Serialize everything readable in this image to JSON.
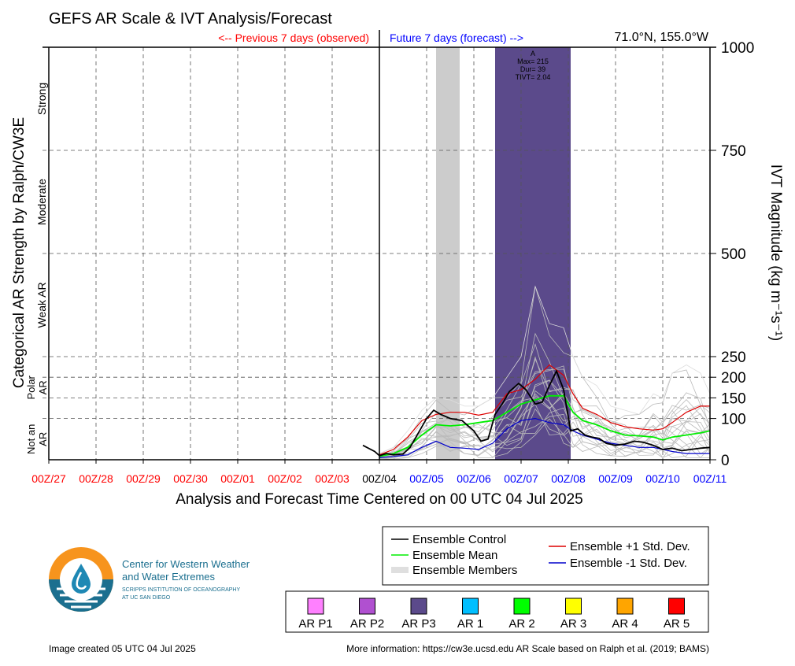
{
  "title": "GEFS AR Scale & IVT Analysis/Forecast",
  "location": "71.0°N, 155.0°W",
  "previous_label": "<-- Previous 7 days (observed)",
  "future_label": "Future 7 days (forecast) -->",
  "xlabel": "Analysis and Forecast Time Centered on 00 UTC 04 Jul 2025",
  "left_ylabel": "Categorical AR Strength by Ralph/CW3E",
  "right_ylabel": "IVT Magnitude (kg m⁻¹s⁻¹)",
  "categories": [
    {
      "label": "Strong",
      "y": 875
    },
    {
      "label": "Moderate",
      "y": 625
    },
    {
      "label": "Weak AR",
      "y": 375
    },
    {
      "label": "Polar AR",
      "y": 175
    },
    {
      "label": "Not an AR",
      "y": 50
    }
  ],
  "logo": {
    "line1": "Center for Western Weather",
    "line2": "and Water Extremes",
    "line3": "SCRIPPS INSTITUTION OF OCEANOGRAPHY",
    "line4": "AT UC SAN DIEGO"
  },
  "footer_left": "Image created 05 UTC 04 Jul 2025",
  "footer_right": "More information: https://cw3e.ucsd.edu AR Scale based on Ralph et al. (2019; BAMS)",
  "legend": [
    {
      "label": "Ensemble Control",
      "color": "#000000"
    },
    {
      "label": "Ensemble Mean",
      "color": "#00ee00"
    },
    {
      "label": "Ensemble Members",
      "color": "#aaaaaa"
    },
    {
      "label": "Ensemble +1 Std. Dev.",
      "color": "#dd0000"
    },
    {
      "label": "Ensemble -1 Std. Dev.",
      "color": "#0000cc"
    }
  ],
  "ar_scale_legend": [
    {
      "label": "AR P1",
      "color": "#ff80ff"
    },
    {
      "label": "AR P2",
      "color": "#b050d0"
    },
    {
      "label": "AR P3",
      "color": "#5b4a8b"
    },
    {
      "label": "AR 1",
      "color": "#00bfff"
    },
    {
      "label": "AR 2",
      "color": "#00ff00"
    },
    {
      "label": "AR 3",
      "color": "#ffff00"
    },
    {
      "label": "AR 4",
      "color": "#ffa500"
    },
    {
      "label": "AR 5",
      "color": "#ff0000"
    }
  ],
  "chart_data": {
    "type": "line",
    "x_ticks": [
      {
        "label": "00Z/27",
        "day": 0,
        "color": "#ff0000"
      },
      {
        "label": "00Z/28",
        "day": 1,
        "color": "#ff0000"
      },
      {
        "label": "00Z/29",
        "day": 2,
        "color": "#ff0000"
      },
      {
        "label": "00Z/30",
        "day": 3,
        "color": "#ff0000"
      },
      {
        "label": "00Z/01",
        "day": 4,
        "color": "#ff0000"
      },
      {
        "label": "00Z/02",
        "day": 5,
        "color": "#ff0000"
      },
      {
        "label": "00Z/03",
        "day": 6,
        "color": "#ff0000"
      },
      {
        "label": "00Z/04",
        "day": 7,
        "color": "#000000"
      },
      {
        "label": "00Z/05",
        "day": 8,
        "color": "#0000ff"
      },
      {
        "label": "00Z/06",
        "day": 9,
        "color": "#0000ff"
      },
      {
        "label": "00Z/07",
        "day": 10,
        "color": "#0000ff"
      },
      {
        "label": "00Z/08",
        "day": 11,
        "color": "#0000ff"
      },
      {
        "label": "00Z/09",
        "day": 12,
        "color": "#0000ff"
      },
      {
        "label": "00Z/10",
        "day": 13,
        "color": "#0000ff"
      },
      {
        "label": "00Z/11",
        "day": 14,
        "color": "#0000ff"
      }
    ],
    "xlim": [
      0,
      14
    ],
    "ylim": [
      0,
      1000
    ],
    "y_ticks": [
      0,
      100,
      150,
      200,
      250,
      500,
      750,
      1000
    ],
    "category_boundaries": [
      100,
      150,
      200,
      250,
      500,
      750
    ],
    "now_day": 7,
    "gray_band": {
      "from": 8.2,
      "to": 8.7
    },
    "ar_event": {
      "from": 9.45,
      "to": 11.05,
      "level": "AR P3",
      "color": "#5b4a8b",
      "annotation": [
        "A",
        "Max= 215",
        "Dur= 39",
        "TIVT= 2.04"
      ]
    },
    "series": [
      {
        "name": "Ensemble Control",
        "color": "#000000",
        "x": [
          6.65,
          6.9,
          7.0,
          7.15,
          7.3,
          7.5,
          7.65,
          7.8,
          8.0,
          8.15,
          8.3,
          8.5,
          8.75,
          9.0,
          9.15,
          9.3,
          9.45,
          9.6,
          9.75,
          9.95,
          10.1,
          10.3,
          10.45,
          10.6,
          10.75,
          10.9,
          11.05,
          11.2,
          11.35,
          11.5,
          11.65,
          11.8,
          12.0,
          12.2,
          12.4,
          12.6,
          12.8,
          13.0,
          13.2,
          13.4,
          13.6,
          13.8,
          14.0
        ],
        "y": [
          35,
          20,
          10,
          15,
          12,
          14,
          30,
          60,
          100,
          120,
          110,
          100,
          95,
          70,
          45,
          50,
          110,
          135,
          165,
          185,
          170,
          135,
          140,
          180,
          215,
          170,
          70,
          75,
          60,
          55,
          52,
          40,
          35,
          38,
          45,
          42,
          35,
          25,
          28,
          22,
          25,
          28,
          30
        ]
      },
      {
        "name": "Ensemble Mean",
        "color": "#00ee00",
        "x": [
          7.0,
          7.3,
          7.6,
          7.9,
          8.2,
          8.5,
          8.8,
          9.1,
          9.4,
          9.7,
          10.0,
          10.3,
          10.6,
          10.9,
          11.1,
          11.3,
          11.6,
          11.9,
          12.2,
          12.5,
          12.8,
          13.0,
          13.2,
          13.5,
          13.8,
          14.0
        ],
        "y": [
          8,
          15,
          30,
          60,
          85,
          82,
          85,
          90,
          95,
          115,
          135,
          145,
          155,
          155,
          115,
          95,
          85,
          70,
          60,
          58,
          55,
          48,
          55,
          60,
          65,
          70
        ]
      },
      {
        "name": "Ensemble +1 Std. Dev.",
        "color": "#dd0000",
        "x": [
          7.0,
          7.3,
          7.6,
          7.9,
          8.2,
          8.5,
          8.8,
          9.1,
          9.4,
          9.7,
          10.0,
          10.3,
          10.6,
          10.9,
          11.1,
          11.3,
          11.6,
          11.9,
          12.2,
          12.5,
          12.8,
          13.0,
          13.2,
          13.5,
          13.8,
          14.0
        ],
        "y": [
          12,
          25,
          55,
          95,
          110,
          115,
          115,
          108,
          115,
          160,
          170,
          195,
          230,
          205,
          160,
          125,
          110,
          90,
          80,
          75,
          72,
          75,
          90,
          115,
          130,
          130
        ]
      },
      {
        "name": "Ensemble -1 Std. Dev.",
        "color": "#0000cc",
        "x": [
          7.0,
          7.3,
          7.6,
          7.9,
          8.2,
          8.5,
          8.8,
          9.1,
          9.4,
          9.7,
          10.0,
          10.3,
          10.6,
          10.9,
          11.1,
          11.3,
          11.6,
          11.9,
          12.2,
          12.5,
          12.8,
          13.0,
          13.2,
          13.5,
          13.8,
          14.0
        ],
        "y": [
          5,
          8,
          12,
          30,
          45,
          30,
          28,
          25,
          40,
          75,
          95,
          100,
          90,
          85,
          70,
          60,
          50,
          40,
          35,
          30,
          30,
          25,
          20,
          15,
          15,
          15
        ]
      },
      {
        "name": "Ensemble Members",
        "color": "#aaaaaa",
        "x": [
          7.0,
          7.3,
          7.6,
          7.9,
          8.2,
          8.5,
          8.8,
          9.1,
          9.4,
          9.7,
          10.0,
          10.3,
          10.6,
          10.9,
          11.1,
          11.3,
          11.6,
          11.9,
          12.2,
          12.5,
          12.8,
          13.0,
          13.2,
          13.5,
          13.8,
          14.0
        ],
        "envelope_low": [
          0,
          2,
          5,
          15,
          30,
          20,
          15,
          5,
          5,
          15,
          30,
          60,
          60,
          40,
          30,
          20,
          15,
          10,
          8,
          8,
          10,
          5,
          5,
          5,
          5,
          5
        ],
        "envelope_high": [
          15,
          30,
          70,
          120,
          150,
          145,
          130,
          130,
          150,
          200,
          250,
          420,
          330,
          320,
          250,
          200,
          180,
          130,
          120,
          110,
          160,
          150,
          210,
          230,
          210,
          160
        ]
      }
    ]
  }
}
